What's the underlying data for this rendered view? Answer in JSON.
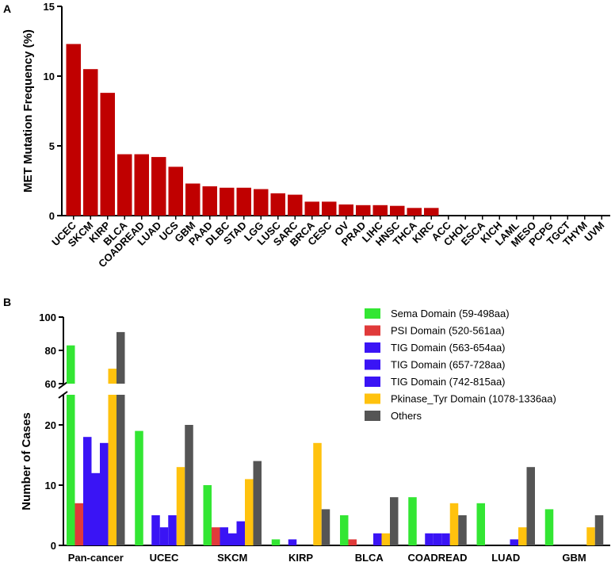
{
  "chart_data": [
    {
      "panel": "A",
      "type": "bar",
      "ylabel": "MET Mutation Frequency (%)",
      "ylim": [
        0,
        15
      ],
      "yticks": [
        0,
        5,
        10,
        15
      ],
      "color": "#c00000",
      "categories": [
        "UCEC",
        "SKCM",
        "KIRP",
        "BLCA",
        "COADREAD",
        "LUAD",
        "UCS",
        "GBM",
        "PAAD",
        "DLBC",
        "STAD",
        "LGG",
        "LUSC",
        "SARC",
        "BRCA",
        "CESC",
        "OV",
        "PRAD",
        "LIHC",
        "HNSC",
        "THCA",
        "KIRC",
        "ACC",
        "CHOL",
        "ESCA",
        "KICH",
        "LAML",
        "MESO",
        "PCPG",
        "TGCT",
        "THYM",
        "UVM"
      ],
      "values": [
        12.3,
        10.5,
        8.8,
        4.4,
        4.4,
        4.2,
        3.5,
        2.3,
        2.1,
        2.0,
        2.0,
        1.9,
        1.6,
        1.5,
        1.0,
        1.0,
        0.8,
        0.75,
        0.75,
        0.7,
        0.55,
        0.55,
        0,
        0,
        0,
        0,
        0,
        0,
        0,
        0,
        0,
        0
      ]
    },
    {
      "panel": "B",
      "type": "bar",
      "ylabel": "Number of Cases",
      "axis_break": {
        "lower": [
          0,
          25
        ],
        "upper": [
          60,
          100
        ]
      },
      "yticks": [
        0,
        10,
        20,
        60,
        80,
        100
      ],
      "categories": [
        "Pan-cancer",
        "UCEC",
        "SKCM",
        "KIRP",
        "BLCA",
        "COADREAD",
        "LUAD",
        "GBM"
      ],
      "series": [
        {
          "name": "Sema Domain (59-498aa)",
          "color": "#33e633",
          "values": [
            83,
            19,
            10,
            1,
            5,
            8,
            7,
            6
          ]
        },
        {
          "name": "PSI Domain (520-561aa)",
          "color": "#e03a3a",
          "values": [
            7,
            0,
            3,
            0,
            1,
            0,
            0,
            0
          ]
        },
        {
          "name": "TIG Domain (563-654aa)",
          "color": "#3a14f5",
          "values": [
            18,
            5,
            3,
            1,
            0,
            2,
            0,
            0
          ]
        },
        {
          "name": "TIG Domain (657-728aa)",
          "color": "#3a14f5",
          "values": [
            12,
            3,
            2,
            0,
            0,
            2,
            0,
            0
          ]
        },
        {
          "name": "TIG Domain (742-815aa)",
          "color": "#3a14f5",
          "values": [
            17,
            5,
            4,
            0,
            2,
            2,
            1,
            0
          ]
        },
        {
          "name": "Pkinase_Tyr Domain (1078-1336aa)",
          "color": "#ffc20e",
          "values": [
            69,
            13,
            11,
            17,
            2,
            7,
            3,
            3
          ]
        },
        {
          "name": "Others",
          "color": "#555555",
          "values": [
            91,
            20,
            14,
            6,
            8,
            5,
            13,
            5
          ]
        }
      ]
    }
  ]
}
